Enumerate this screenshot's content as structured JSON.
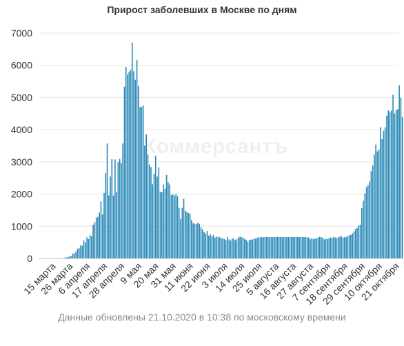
{
  "chart_data": {
    "type": "bar",
    "title": "Прирост заболевших в Москве по дням",
    "footer": "Данные обновлены 21.10.2020 в 10:38 по московскому времени",
    "watermark": "Коммерсантъ",
    "start_date": "2020-03-06",
    "end_date": "2020-10-21",
    "ylim": [
      0,
      7000
    ],
    "y_ticks": [
      0,
      1000,
      2000,
      3000,
      4000,
      5000,
      6000,
      7000
    ],
    "x_tick_labels": [
      {
        "date": "2020-03-15",
        "label": "15 марта"
      },
      {
        "date": "2020-03-26",
        "label": "26 марта"
      },
      {
        "date": "2020-04-06",
        "label": "6 апреля"
      },
      {
        "date": "2020-04-17",
        "label": "17 апреля"
      },
      {
        "date": "2020-04-28",
        "label": "28 апреля"
      },
      {
        "date": "2020-05-09",
        "label": "9 мая"
      },
      {
        "date": "2020-05-20",
        "label": "20 мая"
      },
      {
        "date": "2020-05-31",
        "label": "31 мая"
      },
      {
        "date": "2020-06-11",
        "label": "11 июня"
      },
      {
        "date": "2020-06-22",
        "label": "22 июня"
      },
      {
        "date": "2020-07-03",
        "label": "3 июля"
      },
      {
        "date": "2020-07-14",
        "label": "14 июля"
      },
      {
        "date": "2020-07-25",
        "label": "25 июля"
      },
      {
        "date": "2020-08-05",
        "label": "5 августа"
      },
      {
        "date": "2020-08-16",
        "label": "16 августа"
      },
      {
        "date": "2020-08-27",
        "label": "27 августа"
      },
      {
        "date": "2020-09-07",
        "label": "7 сентября"
      },
      {
        "date": "2020-09-18",
        "label": "18 сентября"
      },
      {
        "date": "2020-09-29",
        "label": "29 сентября"
      },
      {
        "date": "2020-10-10",
        "label": "10 октября"
      },
      {
        "date": "2020-10-21",
        "label": "21 октября"
      }
    ],
    "bar_color": "#2a8ab8",
    "grid": true,
    "values": [
      3,
      3,
      3,
      3,
      3,
      3,
      3,
      3,
      3,
      3,
      3,
      3,
      3,
      3,
      8,
      17,
      29,
      30,
      50,
      62,
      80,
      158,
      152,
      215,
      303,
      319,
      406,
      395,
      563,
      498,
      654,
      599,
      718,
      699,
      1049,
      1124,
      1269,
      1292,
      1425,
      1772,
      1369,
      2035,
      2649,
      3570,
      1959,
      2548,
      3083,
      1953,
      3075,
      2054,
      2992,
      3088,
      2957,
      3570,
      5335,
      5948,
      5712,
      5795,
      5858,
      6703,
      5819,
      5551,
      6169,
      5359,
      4703,
      4712,
      4748,
      3505,
      3855,
      3238,
      2913,
      2840,
      2304,
      2631,
      3190,
      2546,
      2830,
      2074,
      2054,
      2297,
      2170,
      2595,
      2367,
      2298,
      1969,
      1992,
      1951,
      1997,
      1935,
      1572,
      1223,
      1572,
      1855,
      1482,
      1445,
      1413,
      1386,
      1195,
      1095,
      1080,
      1063,
      1115,
      1074,
      964,
      906,
      821,
      765,
      853,
      708,
      751,
      682,
      726,
      650,
      676,
      674,
      659,
      631,
      627,
      607,
      570,
      662,
      590,
      559,
      616,
      619,
      568,
      601,
      650,
      676,
      658,
      650,
      608,
      579,
      521,
      578,
      585,
      586,
      618,
      614,
      644,
      660,
      654,
      661,
      659,
      665,
      667,
      666,
      662,
      663,
      663,
      664,
      665,
      667,
      667,
      665,
      661,
      663,
      662,
      661,
      664,
      667,
      665,
      667,
      664,
      674,
      662,
      663,
      662,
      660,
      663,
      662,
      659,
      650,
      595,
      628,
      604,
      613,
      622,
      650,
      674,
      660,
      642,
      591,
      610,
      604,
      628,
      651,
      634,
      671,
      650,
      642,
      659,
      677,
      691,
      649,
      661,
      657,
      704,
      719,
      735,
      779,
      842,
      915,
      947,
      1015,
      1050,
      1560,
      1792,
      2016,
      2217,
      2279,
      2391,
      2707,
      2884,
      3229,
      3537,
      3327,
      3388,
      4082,
      3705,
      3966,
      4072,
      4435,
      4600,
      4545,
      4591,
      5080,
      4501,
      4610,
      4641,
      5374,
      4999,
      4390
    ]
  }
}
